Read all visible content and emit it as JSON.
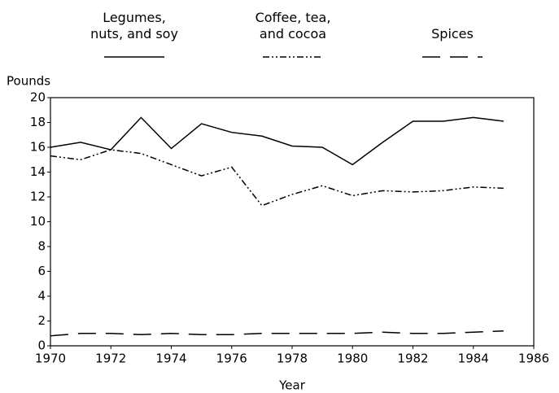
{
  "chart_data": {
    "type": "line",
    "y_label": "Pounds",
    "x_label": "Year",
    "x": [
      1970,
      1971,
      1972,
      1973,
      1974,
      1975,
      1976,
      1977,
      1978,
      1979,
      1980,
      1981,
      1982,
      1983,
      1984,
      1985
    ],
    "series": [
      {
        "name": "Legumes,\nnuts, and soy",
        "color": "#000000",
        "values": [
          16.0,
          16.4,
          15.8,
          18.4,
          15.9,
          17.9,
          17.2,
          16.9,
          16.1,
          16.0,
          14.6,
          16.4,
          18.1,
          18.1,
          18.4,
          18.1
        ]
      },
      {
        "name": "Coffee, tea,\nand cocoa",
        "color": "#000000",
        "values": [
          15.3,
          15.0,
          15.8,
          15.5,
          14.6,
          13.7,
          14.4,
          11.3,
          12.2,
          12.9,
          12.1,
          12.5,
          12.4,
          12.5,
          12.8,
          12.7
        ]
      },
      {
        "name": "Spices",
        "color": "#000000",
        "values": [
          0.8,
          1.0,
          1.0,
          0.9,
          1.0,
          0.9,
          0.9,
          1.0,
          1.0,
          1.0,
          1.0,
          1.1,
          1.0,
          1.0,
          1.1,
          1.2
        ]
      }
    ],
    "xlim": [
      1970,
      1986
    ],
    "xticks": [
      1970,
      1972,
      1974,
      1976,
      1978,
      1980,
      1982,
      1984,
      1986
    ],
    "ylim": [
      0,
      20
    ],
    "yticks": [
      0,
      2,
      4,
      6,
      8,
      10,
      12,
      14,
      16,
      18,
      20
    ],
    "grid": false
  }
}
